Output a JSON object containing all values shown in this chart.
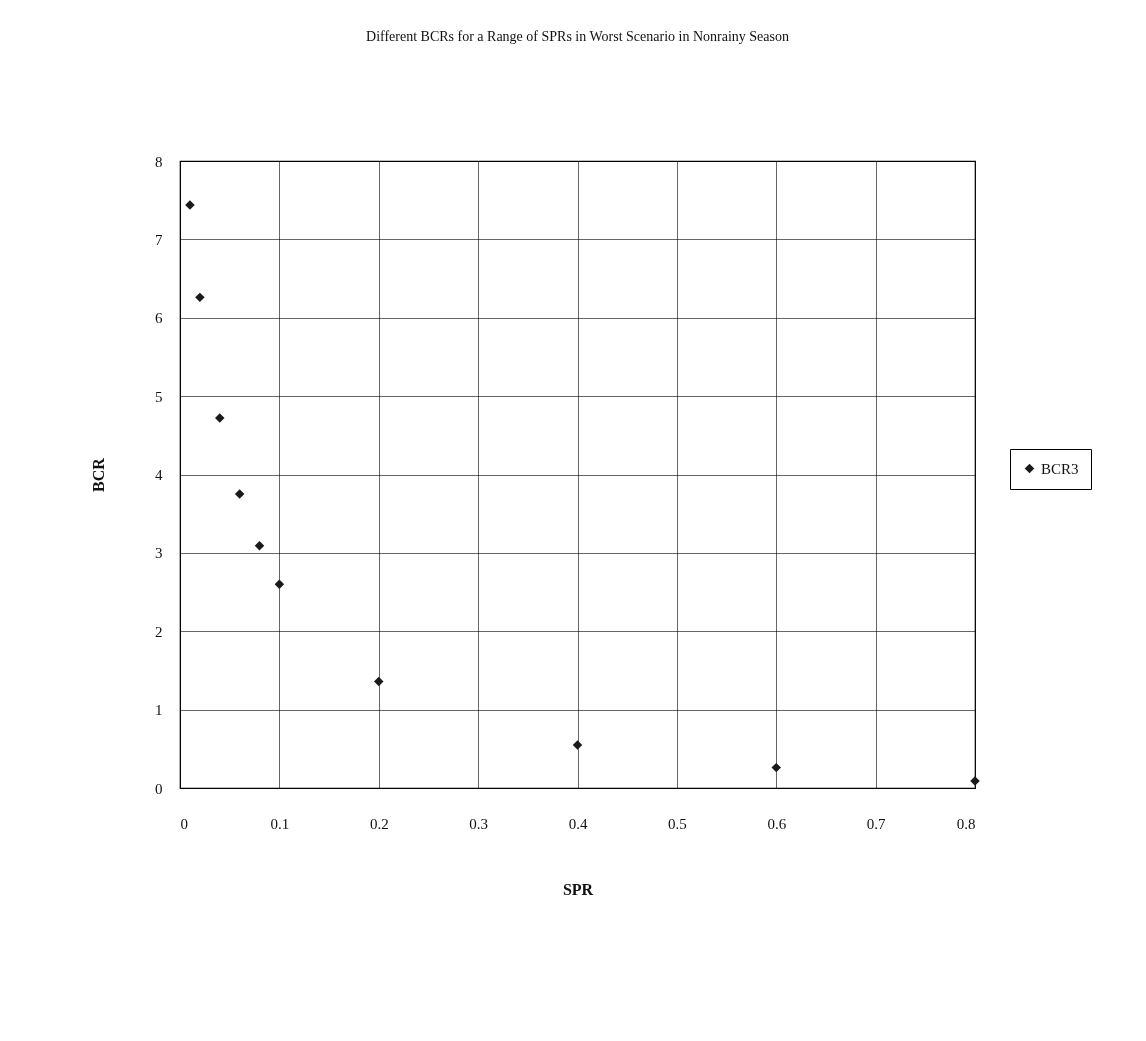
{
  "chart_data": {
    "type": "scatter",
    "title": "Different BCRs for a Range of SPRs in Worst Scenario in Nonrainy Season",
    "xlabel": "SPR",
    "ylabel": "BCR",
    "x": [
      0.01,
      0.02,
      0.04,
      0.06,
      0.08,
      0.1,
      0.2,
      0.4,
      0.6,
      0.8
    ],
    "series": [
      {
        "name": "BCR3",
        "color": "#1a1a1a",
        "values": [
          7.44,
          6.26,
          4.72,
          3.75,
          3.09,
          2.6,
          1.36,
          0.55,
          0.26,
          0.09
        ]
      }
    ],
    "xlim": [
      0,
      0.8
    ],
    "xticks": [
      0,
      0.1,
      0.2,
      0.3,
      0.4,
      0.5,
      0.6,
      0.7,
      0.8
    ],
    "ylim": [
      0,
      8
    ],
    "yticks": [
      0,
      1,
      2,
      3,
      4,
      5,
      6,
      7,
      8
    ],
    "grid": true,
    "legend": "right",
    "marker": "diamond"
  }
}
